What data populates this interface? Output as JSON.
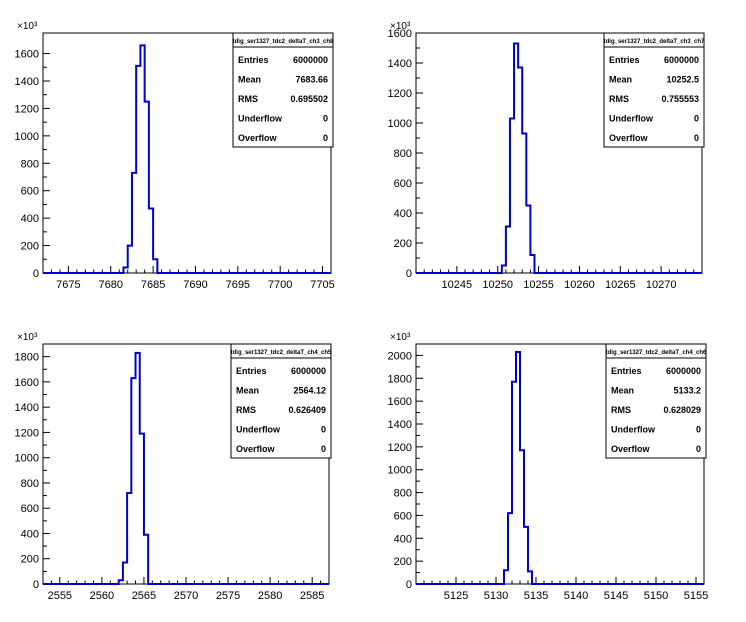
{
  "chart_data": [
    {
      "type": "histogram",
      "title": "tdig_ser1327_tdc2_deltaT_ch3_ch8",
      "y_exponent": "×10³",
      "xlim": [
        7672,
        7706
      ],
      "ylim": [
        0,
        1750
      ],
      "x_ticks": [
        7675,
        7680,
        7685,
        7690,
        7695,
        7700,
        7705
      ],
      "y_ticks": [
        0,
        200,
        400,
        600,
        800,
        1000,
        1200,
        1400,
        1600
      ],
      "bin_edges": [
        7681.5,
        7682,
        7682.5,
        7683,
        7683.5,
        7684,
        7684.5,
        7685,
        7685.5
      ],
      "values": [
        40,
        200,
        730,
        1510,
        1660,
        1250,
        470,
        100
      ],
      "stats": {
        "Entries": "6000000",
        "Mean": "7683.66",
        "RMS": "0.695502",
        "Underflow": "0",
        "Overflow": "0"
      }
    },
    {
      "type": "histogram",
      "title": "tdig_ser1327_tdc2_deltaT_ch3_ch7",
      "y_exponent": "×10³",
      "xlim": [
        10240,
        10275
      ],
      "ylim": [
        0,
        1600
      ],
      "x_ticks": [
        10245,
        10250,
        10255,
        10260,
        10265,
        10270
      ],
      "y_ticks": [
        0,
        200,
        400,
        600,
        800,
        1000,
        1200,
        1400,
        1600
      ],
      "bin_edges": [
        10250.5,
        10251,
        10251.5,
        10252,
        10252.5,
        10253,
        10253.5,
        10254,
        10254.5
      ],
      "values": [
        50,
        310,
        1030,
        1530,
        1370,
        930,
        450,
        120
      ],
      "stats": {
        "Entries": "6000000",
        "Mean": "10252.5",
        "RMS": "0.755553",
        "Underflow": "0",
        "Overflow": "0"
      }
    },
    {
      "type": "histogram",
      "title": "tdig_ser1327_tdc2_deltaT_ch4_ch5",
      "y_exponent": "×10³",
      "xlim": [
        2553,
        2587
      ],
      "ylim": [
        0,
        1900
      ],
      "x_ticks": [
        2555,
        2560,
        2565,
        2570,
        2575,
        2580,
        2585
      ],
      "y_ticks": [
        0,
        200,
        400,
        600,
        800,
        1000,
        1200,
        1400,
        1600,
        1800
      ],
      "bin_edges": [
        2562,
        2562.5,
        2563,
        2563.5,
        2564,
        2564.5,
        2565,
        2565.5
      ],
      "values": [
        30,
        170,
        720,
        1630,
        1830,
        1190,
        390
      ],
      "stats": {
        "Entries": "6000000",
        "Mean": "2564.12",
        "RMS": "0.626409",
        "Underflow": "0",
        "Overflow": "0"
      }
    },
    {
      "type": "histogram",
      "title": "tdig_ser1327_tdc2_deltaT_ch4_ch6",
      "y_exponent": "×10³",
      "xlim": [
        5120,
        5156
      ],
      "ylim": [
        0,
        2100
      ],
      "x_ticks": [
        5125,
        5130,
        5135,
        5140,
        5145,
        5150,
        5155
      ],
      "y_ticks": [
        0,
        200,
        400,
        600,
        800,
        1000,
        1200,
        1400,
        1600,
        1800,
        2000
      ],
      "bin_edges": [
        5131,
        5131.5,
        5132,
        5132.5,
        5133,
        5133.5,
        5134,
        5134.5
      ],
      "values": [
        120,
        620,
        1770,
        2030,
        1170,
        500,
        110
      ],
      "stats": {
        "Entries": "6000000",
        "Mean": "5133.2",
        "RMS": "0.628029",
        "Underflow": "0",
        "Overflow": "0"
      }
    }
  ]
}
